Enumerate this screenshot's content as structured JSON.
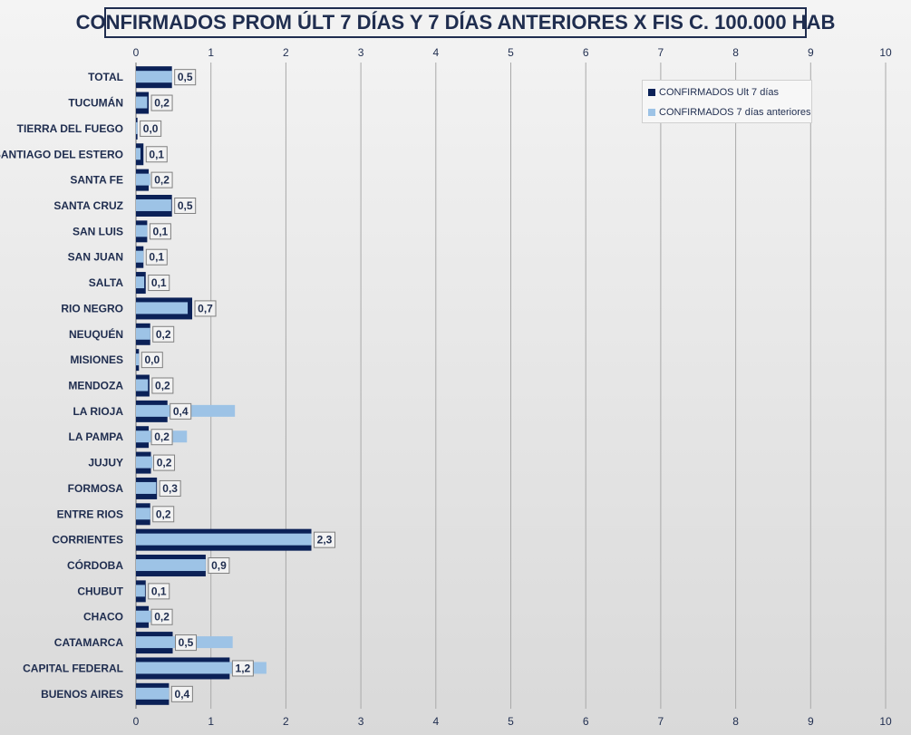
{
  "chart_data": {
    "type": "bar",
    "orientation": "horizontal",
    "title": "CONFIRMADOS PROM ÚLT 7 DÍAS Y 7 DÍAS ANTERIORES X FIS C. 100.000 HAB",
    "xlim": [
      0,
      10
    ],
    "xticks": [
      "0",
      "1",
      "2",
      "3",
      "4",
      "5",
      "6",
      "7",
      "8",
      "9",
      "10"
    ],
    "grid": "vertical",
    "legend_position": "top-right",
    "categories": [
      "TOTAL",
      "TUCUMÁN",
      "TIERRA  DEL FUEGO",
      "SANTIAGO  DEL ESTERO",
      "SANTA FE",
      "SANTA CRUZ",
      "SAN LUIS",
      "SAN JUAN",
      "SALTA",
      "RIO NEGRO",
      "NEUQUÉN",
      "MISIONES",
      "MENDOZA",
      "LA RIOJA",
      "LA PAMPA",
      "JUJUY",
      "FORMOSA",
      "ENTRE RIOS",
      "CORRIENTES",
      "CÓRDOBA",
      "CHUBUT",
      "CHACO",
      "CATAMARCA",
      "CAPITAL FEDERAL",
      "BUENOS  AIRES"
    ],
    "series": [
      {
        "name": "CONFIRMADOS Ult 7 días",
        "color": "#0b2157",
        "values": [
          0.48,
          0.17,
          0.02,
          0.1,
          0.17,
          0.48,
          0.15,
          0.1,
          0.13,
          0.75,
          0.19,
          0.04,
          0.18,
          0.42,
          0.17,
          0.2,
          0.28,
          0.19,
          2.34,
          0.93,
          0.13,
          0.17,
          0.49,
          1.25,
          0.44
        ]
      },
      {
        "name": "CONFIRMADOS 7 días anteriores",
        "color": "#9dc3e6",
        "values": [
          0.48,
          0.15,
          0.02,
          0.06,
          0.19,
          0.47,
          0.15,
          0.1,
          0.11,
          0.69,
          0.19,
          0.04,
          0.16,
          1.32,
          0.68,
          0.22,
          0.27,
          0.19,
          2.34,
          0.93,
          0.12,
          0.22,
          1.29,
          1.74,
          0.44
        ]
      }
    ],
    "data_labels": [
      "0,5",
      "0,2",
      "0,0",
      "0,1",
      "0,2",
      "0,5",
      "0,1",
      "0,1",
      "0,1",
      "0,7",
      "0,2",
      "0,0",
      "0,2",
      "0,4",
      "0,2",
      "0,2",
      "0,3",
      "0,2",
      "2,3",
      "0,9",
      "0,1",
      "0,2",
      "0,5",
      "1,2",
      "0,4"
    ]
  }
}
